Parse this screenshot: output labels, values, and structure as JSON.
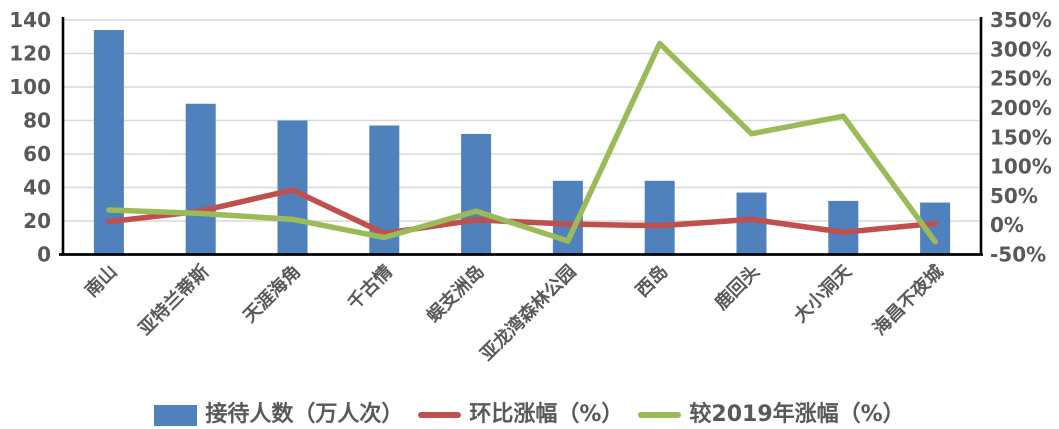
{
  "chart_data": {
    "type": "bar",
    "subtype": "combo-bar-line-dual-axis",
    "title": "",
    "categories": [
      "南山",
      "亚特兰蒂斯",
      "天涯海角",
      "千古情",
      "蜈支洲岛",
      "亚龙湾森林公园",
      "西岛",
      "鹿回头",
      "大小洞天",
      "海昌不夜城"
    ],
    "series": [
      {
        "name": "接待人数（万人次）",
        "type": "bar",
        "axis": "left",
        "color": "#4F81BD",
        "values": [
          134,
          90,
          80,
          77,
          72,
          44,
          44,
          37,
          32,
          31
        ]
      },
      {
        "name": "环比涨幅（%）",
        "type": "line",
        "axis": "right",
        "color": "#C0504D",
        "values": [
          6,
          24,
          60,
          -14,
          9,
          2,
          -1,
          10,
          -12,
          3
        ]
      },
      {
        "name": "较2019年涨幅（%）",
        "type": "line",
        "axis": "right",
        "color": "#9BBB59",
        "values": [
          26,
          20,
          10,
          -21,
          24,
          -27,
          310,
          156,
          186,
          -28
        ]
      }
    ],
    "left_axis": {
      "min": 0,
      "max": 140,
      "step": 20,
      "tick_labels": [
        "0",
        "20",
        "40",
        "60",
        "80",
        "100",
        "120",
        "140"
      ]
    },
    "right_axis": {
      "min": -50,
      "max": 350,
      "step": 50,
      "tick_labels": [
        "-50%",
        "0%",
        "50%",
        "100%",
        "150%",
        "200%",
        "250%",
        "300%",
        "350%"
      ]
    },
    "grid": true,
    "legend_position": "bottom",
    "colors": {
      "text": "#595959",
      "gridline": "#D9D9D9",
      "axis_line": "#000000",
      "background": "#FFFFFF"
    }
  }
}
